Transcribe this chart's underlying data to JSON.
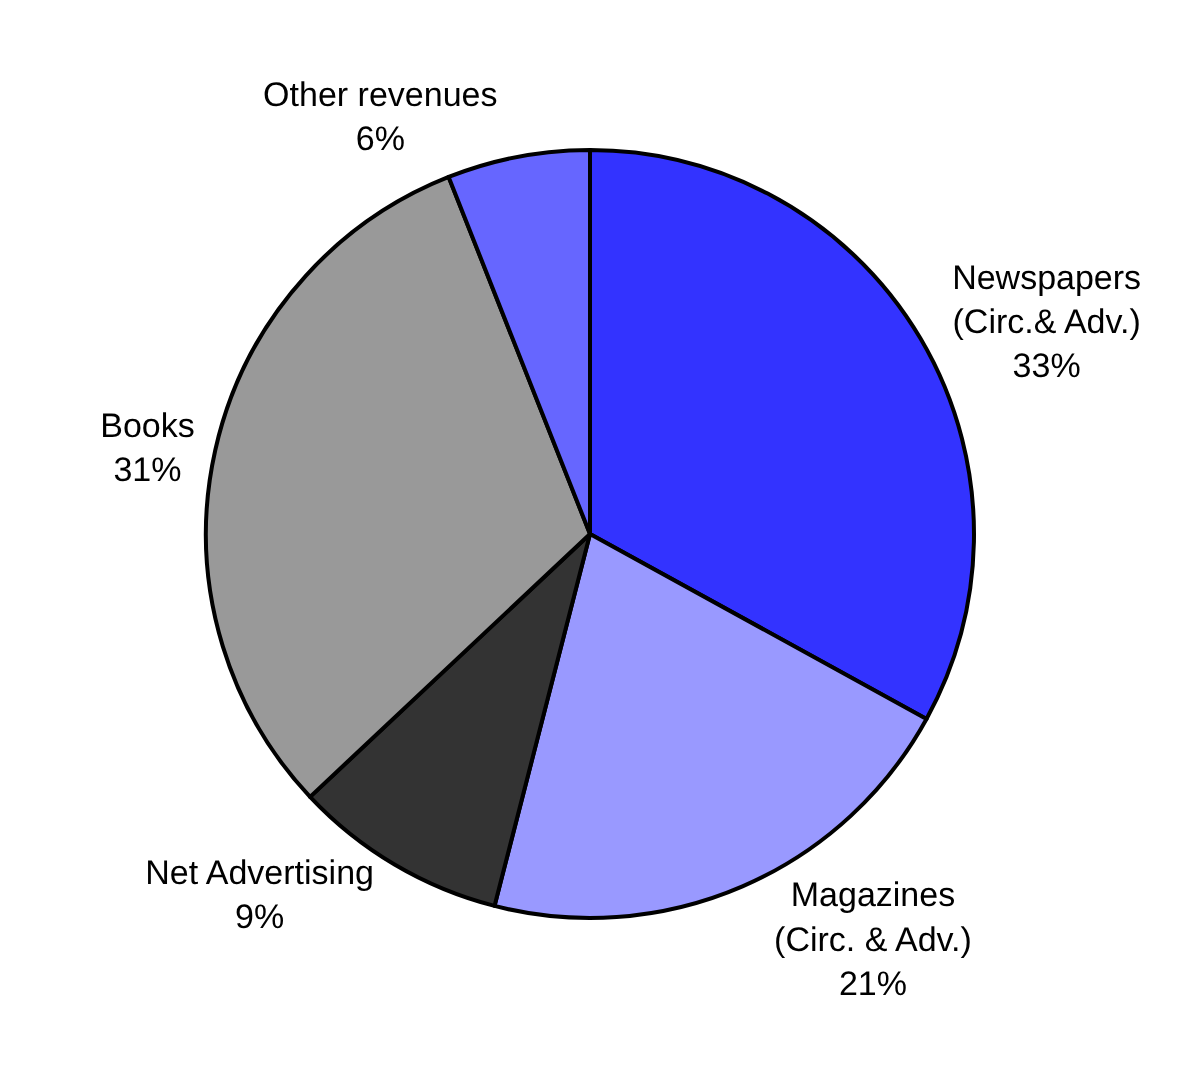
{
  "chart_data": {
    "type": "pie",
    "categories": [
      "Newspapers\n(Circ.& Adv.)",
      "Magazines\n(Circ. & Adv.)",
      "Net Advertising",
      "Books",
      "Other revenues"
    ],
    "values": [
      33,
      21,
      9,
      31,
      6
    ],
    "value_labels": [
      "33%",
      "21%",
      "9%",
      "31%",
      "6%"
    ],
    "colors": [
      "#3333ff",
      "#9999ff",
      "#333333",
      "#999999",
      "#6666ff"
    ],
    "legend": false
  }
}
